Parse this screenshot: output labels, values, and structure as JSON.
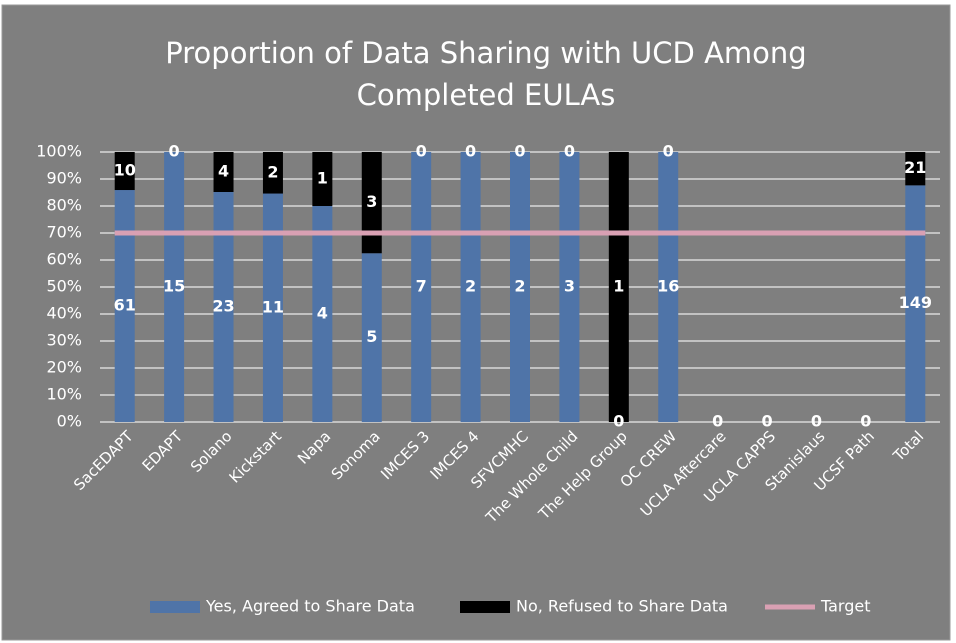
{
  "chart_data": {
    "type": "bar",
    "stacked": "percent",
    "title": "Proportion of Data Sharing with UCD Among Completed EULAs",
    "categories": [
      "SacEDAPT",
      "EDAPT",
      "Solano",
      "Kickstart",
      "Napa",
      "Sonoma",
      "IMCES 3",
      "IMCES 4",
      "SFVCMHC",
      "The Whole Child",
      "The Help Group",
      "OC CREW",
      "UCLA Aftercare",
      "UCLA CAPPS",
      "Stanislaus",
      "UCSF Path",
      "Total"
    ],
    "series": [
      {
        "name": "Yes, Agreed to Share Data",
        "color": "#4f74a8",
        "values": [
          61,
          15,
          23,
          11,
          4,
          5,
          7,
          2,
          2,
          3,
          0,
          16,
          0,
          0,
          0,
          0,
          149
        ]
      },
      {
        "name": "No, Refused to Share Data",
        "color": "#000000",
        "values": [
          10,
          0,
          4,
          2,
          1,
          3,
          0,
          0,
          0,
          0,
          1,
          0,
          null,
          null,
          null,
          null,
          21
        ]
      }
    ],
    "target": {
      "name": "Target",
      "color": "#d9a0b3",
      "value": 70
    },
    "ylim": [
      0,
      100
    ],
    "yticks": [
      {
        "value": 0,
        "label": "0%"
      },
      {
        "value": 10,
        "label": "10%"
      },
      {
        "value": 20,
        "label": "20%"
      },
      {
        "value": 30,
        "label": "30%"
      },
      {
        "value": 40,
        "label": "40%"
      },
      {
        "value": 50,
        "label": "50%"
      },
      {
        "value": 60,
        "label": "60%"
      },
      {
        "value": 70,
        "label": "70%"
      },
      {
        "value": 80,
        "label": "80%"
      },
      {
        "value": 90,
        "label": "90%"
      },
      {
        "value": 100,
        "label": "100%"
      }
    ],
    "grid": true,
    "legend": "bottom"
  }
}
